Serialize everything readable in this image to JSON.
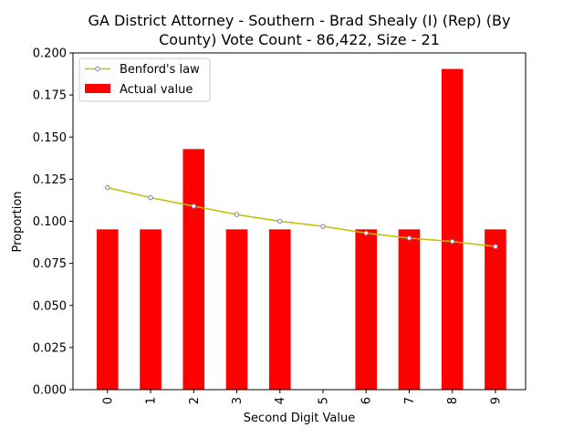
{
  "chart_data": {
    "type": "bar",
    "title_line1": "GA District Attorney - Southern - Brad Shealy (I) (Rep) (By",
    "title_line2": "County) Vote Count - 86,422, Size - 21",
    "xlabel": "Second Digit Value",
    "ylabel": "Proportion",
    "ylim": [
      0,
      0.2
    ],
    "yticks": [
      "0.000",
      "0.025",
      "0.050",
      "0.075",
      "0.100",
      "0.125",
      "0.150",
      "0.175",
      "0.200"
    ],
    "categories": [
      "0",
      "1",
      "2",
      "3",
      "4",
      "5",
      "6",
      "7",
      "8",
      "9"
    ],
    "series": [
      {
        "name": "Actual value",
        "kind": "bar",
        "color": "#ff0000",
        "values": [
          0.0952,
          0.0952,
          0.1429,
          0.0952,
          0.0952,
          0.0,
          0.0952,
          0.0952,
          0.1905,
          0.0952
        ]
      },
      {
        "name": "Benford's law",
        "kind": "line",
        "color": "#bfbf00",
        "marker_color": "#7f7fbf",
        "values": [
          0.12,
          0.114,
          0.109,
          0.104,
          0.1,
          0.097,
          0.093,
          0.09,
          0.088,
          0.085
        ]
      }
    ],
    "legend": {
      "placement": "top-left",
      "entries": [
        "Benford's law",
        "Actual value"
      ]
    },
    "grid": false
  }
}
